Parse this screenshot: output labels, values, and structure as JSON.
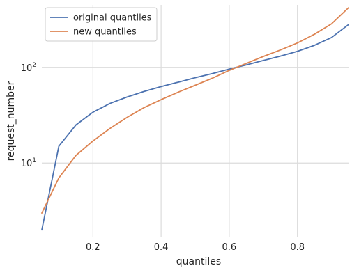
{
  "chart_data": {
    "type": "line",
    "xlabel": "quantiles",
    "ylabel": "request_number",
    "xlim": [
      0.05,
      0.95
    ],
    "ylim": [
      1.7,
      450
    ],
    "yscale": "log",
    "grid": true,
    "legend_position": "top-left",
    "x_ticks": [
      "0.2",
      "0.4",
      "0.6",
      "0.8"
    ],
    "x_tick_values": [
      0.2,
      0.4,
      0.6,
      0.8
    ],
    "y_ticks": [
      {
        "base": "10",
        "exp": "1",
        "value": 10
      },
      {
        "base": "10",
        "exp": "2",
        "value": 100
      }
    ],
    "x": [
      0.05,
      0.1,
      0.15,
      0.2,
      0.25,
      0.3,
      0.35,
      0.4,
      0.45,
      0.5,
      0.55,
      0.6,
      0.65,
      0.7,
      0.75,
      0.8,
      0.85,
      0.9,
      0.95
    ],
    "series": [
      {
        "name": "original quantiles",
        "color": "#4c72b0",
        "values": [
          2.0,
          15,
          25,
          34,
          42,
          49,
          56,
          63,
          70,
          78,
          86,
          96,
          106,
          118,
          131,
          147,
          170,
          205,
          280
        ]
      },
      {
        "name": "new quantiles",
        "color": "#dd8452",
        "values": [
          3.0,
          7.0,
          12,
          17,
          23,
          30,
          38,
          46,
          55,
          65,
          77,
          93,
          110,
          130,
          152,
          180,
          222,
          285,
          420
        ]
      }
    ]
  }
}
